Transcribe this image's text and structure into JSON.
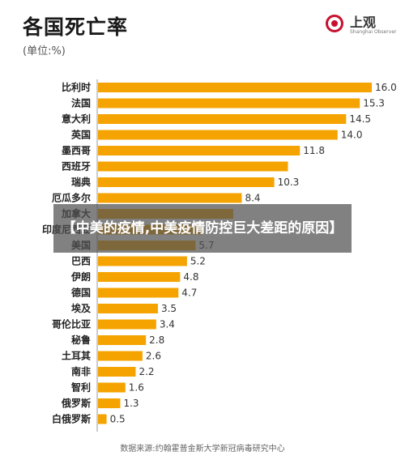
{
  "title": "各国死亡率",
  "unit_label": "(单位:%)",
  "logo": {
    "text": "上观",
    "sub": "Shanghai Observer"
  },
  "overlay_caption": "【中美的疫情,中美疫情防控巨大差距的原因】",
  "source": "数据来源:约翰霍普金斯大学新冠病毒研究中心",
  "colors": {
    "bar": "#f5a300"
  },
  "chart_data": {
    "type": "bar",
    "orientation": "horizontal",
    "categories": [
      "比利时",
      "法国",
      "意大利",
      "英国",
      "墨西哥",
      "西班牙",
      "瑞典",
      "厄瓜多尔",
      "加拿大",
      "印度尼西亚",
      "美国",
      "巴西",
      "伊朗",
      "德国",
      "埃及",
      "哥伦比亚",
      "秘鲁",
      "土耳其",
      "南非",
      "智利",
      "俄罗斯",
      "白俄罗斯"
    ],
    "values": [
      16.0,
      15.3,
      14.5,
      14.0,
      11.8,
      11.1,
      10.3,
      8.4,
      7.9,
      6.1,
      5.7,
      5.2,
      4.8,
      4.7,
      3.5,
      3.4,
      2.8,
      2.6,
      2.2,
      1.6,
      1.3,
      0.5
    ],
    "data_labels": [
      "16.0",
      "15.3",
      "14.5",
      "14.0",
      "11.8",
      "",
      "10.3",
      "8.4",
      "",
      "",
      "5.7",
      "5.2",
      "4.8",
      "4.7",
      "3.5",
      "3.4",
      "2.8",
      "2.6",
      "2.2",
      "1.6",
      "1.3",
      "0.5"
    ],
    "title": "各国死亡率",
    "xlabel": "",
    "ylabel": "",
    "xlim": [
      0,
      16
    ]
  }
}
